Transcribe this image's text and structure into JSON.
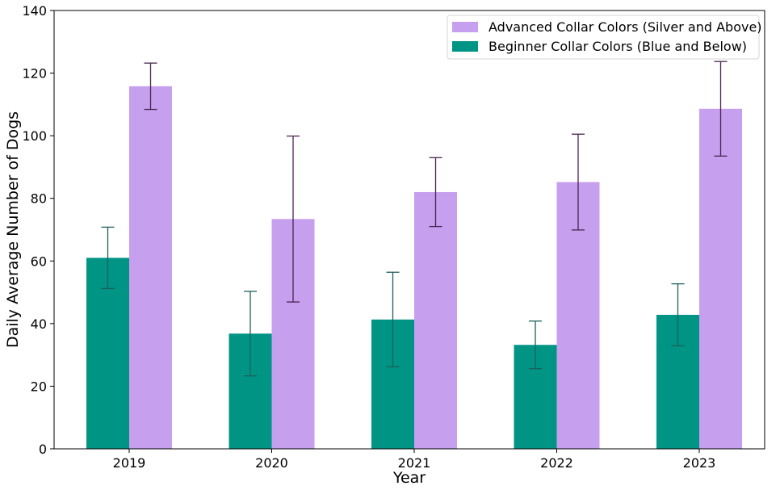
{
  "chart_data": {
    "type": "bar",
    "title": "",
    "xlabel": "Year",
    "ylabel": "Daily Average Number of Dogs",
    "categories": [
      "2019",
      "2020",
      "2021",
      "2022",
      "2023"
    ],
    "ylim": [
      0,
      140
    ],
    "yticks": [
      0,
      20,
      40,
      60,
      80,
      100,
      120,
      140
    ],
    "grid": false,
    "legend_position": "top-right",
    "series": [
      {
        "name": "Beginner Collar Colors (Blue and Below)",
        "color": "#009485",
        "error_color": "#1f5f5a",
        "values": [
          61.0,
          36.8,
          41.3,
          33.2,
          42.8
        ],
        "errors": [
          9.8,
          13.5,
          15.1,
          7.6,
          9.9
        ]
      },
      {
        "name": "Advanced Collar Colors (Silver and Above)",
        "color": "#c69fee",
        "error_color": "#4a2450",
        "values": [
          115.8,
          73.4,
          82.0,
          85.2,
          108.6
        ],
        "errors": [
          7.4,
          26.5,
          11.0,
          15.3,
          15.1
        ]
      }
    ]
  }
}
